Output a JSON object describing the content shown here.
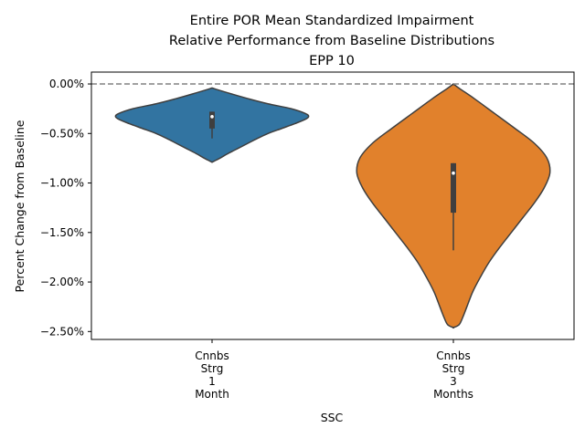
{
  "chart_data": {
    "type": "violin",
    "title_lines": [
      "Entire POR Mean Standardized Impairment",
      "Relative Performance from Baseline Distributions",
      "EPP 10"
    ],
    "xlabel": "SSC",
    "ylabel": "Percent Change from Baseline",
    "ylim": [
      -2.58,
      0.12
    ],
    "yticks": [
      0.0,
      -0.5,
      -1.0,
      -1.5,
      -2.0,
      -2.5
    ],
    "ytick_labels": [
      "0.00%",
      "−0.50%",
      "−1.00%",
      "−1.50%",
      "−2.00%",
      "−2.50%"
    ],
    "reference_line": {
      "y": 0.0,
      "style": "dashed",
      "color": "#808080"
    },
    "categories": [
      {
        "label_lines": [
          "Cnnbs",
          "Strg",
          "1",
          "Month"
        ],
        "color": "#3274a1",
        "median": -0.33,
        "q1": -0.45,
        "q3": -0.28,
        "whisker_low": -0.55,
        "whisker_high": -0.28,
        "density_profile": [
          [
            -0.04,
            0.0
          ],
          [
            -0.05,
            0.03
          ],
          [
            -0.1,
            0.2
          ],
          [
            -0.15,
            0.38
          ],
          [
            -0.2,
            0.58
          ],
          [
            -0.25,
            0.82
          ],
          [
            -0.3,
            0.97
          ],
          [
            -0.33,
            1.0
          ],
          [
            -0.36,
            0.96
          ],
          [
            -0.4,
            0.86
          ],
          [
            -0.45,
            0.72
          ],
          [
            -0.5,
            0.58
          ],
          [
            -0.55,
            0.47
          ],
          [
            -0.6,
            0.37
          ],
          [
            -0.65,
            0.27
          ],
          [
            -0.7,
            0.17
          ],
          [
            -0.75,
            0.08
          ],
          [
            -0.78,
            0.02
          ],
          [
            -0.79,
            0.0
          ]
        ]
      },
      {
        "label_lines": [
          "Cnnbs",
          "Strg",
          "3",
          "Months"
        ],
        "color": "#e1812c",
        "median": -0.9,
        "q1": -1.3,
        "q3": -0.8,
        "whisker_low": -1.68,
        "whisker_high": -0.8,
        "density_profile": [
          [
            0.0,
            0.0
          ],
          [
            -0.05,
            0.07
          ],
          [
            -0.15,
            0.22
          ],
          [
            -0.3,
            0.43
          ],
          [
            -0.45,
            0.64
          ],
          [
            -0.6,
            0.84
          ],
          [
            -0.75,
            0.97
          ],
          [
            -0.9,
            1.0
          ],
          [
            -1.05,
            0.94
          ],
          [
            -1.2,
            0.84
          ],
          [
            -1.35,
            0.72
          ],
          [
            -1.5,
            0.6
          ],
          [
            -1.65,
            0.48
          ],
          [
            -1.8,
            0.37
          ],
          [
            -1.95,
            0.28
          ],
          [
            -2.1,
            0.2
          ],
          [
            -2.25,
            0.14
          ],
          [
            -2.35,
            0.1
          ],
          [
            -2.43,
            0.06
          ],
          [
            -2.46,
            0.0
          ]
        ]
      }
    ]
  }
}
